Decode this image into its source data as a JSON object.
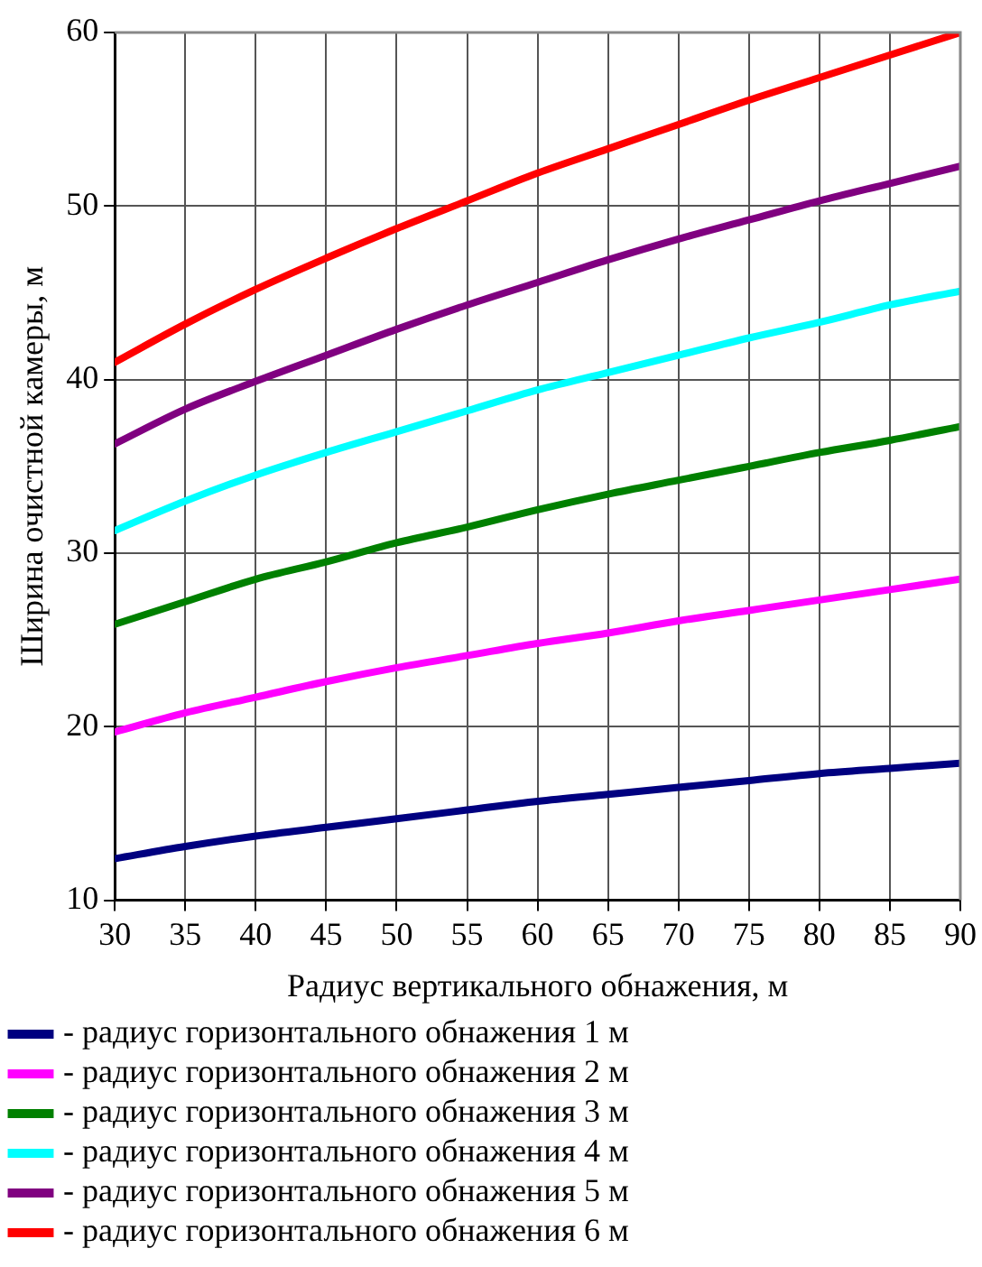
{
  "chart_data": {
    "type": "line",
    "xlabel": "Радиус вертикального обнажения, м",
    "ylabel": "Ширина очистной камеры, м",
    "x": [
      30,
      35,
      40,
      45,
      50,
      55,
      60,
      65,
      70,
      75,
      80,
      85,
      90
    ],
    "xlim": [
      30,
      90
    ],
    "xticks": [
      30,
      35,
      40,
      45,
      50,
      55,
      60,
      65,
      70,
      75,
      80,
      85,
      90
    ],
    "ylim": [
      10,
      60
    ],
    "yticks": [
      10,
      20,
      30,
      40,
      50,
      60
    ],
    "grid": true,
    "legend": "bottom",
    "marker": "none",
    "line_style": "solid",
    "series": [
      {
        "name": "- радиус горизонтального обнажения 1 м",
        "color": "#000080",
        "values": [
          12.4,
          13.1,
          13.7,
          14.2,
          14.7,
          15.2,
          15.7,
          16.1,
          16.5,
          16.9,
          17.3,
          17.6,
          17.9
        ]
      },
      {
        "name": "- радиус горизонтального обнажения 2 м",
        "color": "#ff00ff",
        "values": [
          19.7,
          20.8,
          21.7,
          22.6,
          23.4,
          24.1,
          24.8,
          25.4,
          26.1,
          26.7,
          27.3,
          27.9,
          28.5
        ]
      },
      {
        "name": "- радиус горизонтального обнажения 3 м",
        "color": "#008000",
        "values": [
          25.9,
          27.2,
          28.5,
          29.5,
          30.6,
          31.5,
          32.5,
          33.4,
          34.2,
          35,
          35.8,
          36.5,
          37.3
        ]
      },
      {
        "name": "- радиус горизонтального обнажения 4 м",
        "color": "#00ffff",
        "values": [
          31.3,
          33,
          34.5,
          35.8,
          37,
          38.2,
          39.4,
          40.4,
          41.4,
          42.4,
          43.3,
          44.3,
          45.1
        ]
      },
      {
        "name": "- радиус горизонтального обнажения 5 м",
        "color": "#800080",
        "values": [
          36.3,
          38.3,
          39.9,
          41.4,
          42.9,
          44.3,
          45.6,
          46.9,
          48.1,
          49.2,
          50.3,
          51.3,
          52.3
        ]
      },
      {
        "name": "- радиус горизонтального обнажения 6 м",
        "color": "#ff0000",
        "values": [
          41,
          43.2,
          45.2,
          47,
          48.7,
          50.3,
          51.9,
          53.3,
          54.7,
          56.1,
          57.4,
          58.7,
          60
        ]
      }
    ]
  }
}
